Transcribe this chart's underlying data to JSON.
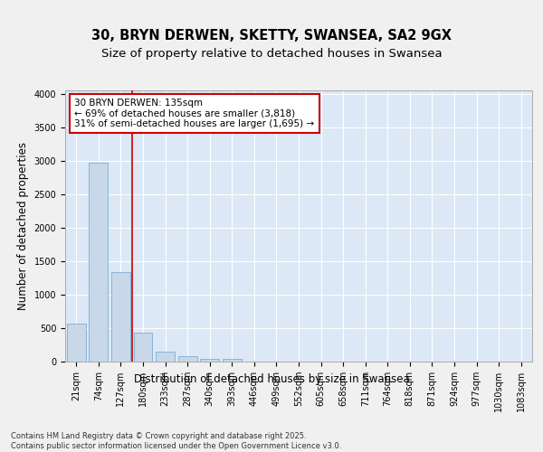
{
  "title_line1": "30, BRYN DERWEN, SKETTY, SWANSEA, SA2 9GX",
  "title_line2": "Size of property relative to detached houses in Swansea",
  "xlabel": "Distribution of detached houses by size in Swansea",
  "ylabel": "Number of detached properties",
  "bar_labels": [
    "21sqm",
    "74sqm",
    "127sqm",
    "180sqm",
    "233sqm",
    "287sqm",
    "340sqm",
    "393sqm",
    "446sqm",
    "499sqm",
    "552sqm",
    "605sqm",
    "658sqm",
    "711sqm",
    "764sqm",
    "818sqm",
    "871sqm",
    "924sqm",
    "977sqm",
    "1030sqm",
    "1083sqm"
  ],
  "bar_values": [
    570,
    2970,
    1340,
    430,
    155,
    75,
    45,
    35,
    0,
    0,
    0,
    0,
    0,
    0,
    0,
    0,
    0,
    0,
    0,
    0,
    0
  ],
  "bar_color": "#c8d8e8",
  "bar_edge_color": "#7bafd4",
  "vline_x": 2.5,
  "vline_color": "#cc0000",
  "annotation_text": "30 BRYN DERWEN: 135sqm\n← 69% of detached houses are smaller (3,818)\n31% of semi-detached houses are larger (1,695) →",
  "annotation_box_color": "#ffffff",
  "annotation_box_edge_color": "#cc0000",
  "ylim": [
    0,
    4050
  ],
  "yticks": [
    0,
    500,
    1000,
    1500,
    2000,
    2500,
    3000,
    3500,
    4000
  ],
  "background_color": "#dce8f5",
  "fig_background_color": "#f0f0f0",
  "footer_text": "Contains HM Land Registry data © Crown copyright and database right 2025.\nContains public sector information licensed under the Open Government Licence v3.0.",
  "grid_color": "#ffffff",
  "title_fontsize": 10.5,
  "subtitle_fontsize": 9.5,
  "axis_label_fontsize": 8.5,
  "tick_fontsize": 7,
  "annotation_fontsize": 7.5,
  "footer_fontsize": 6
}
